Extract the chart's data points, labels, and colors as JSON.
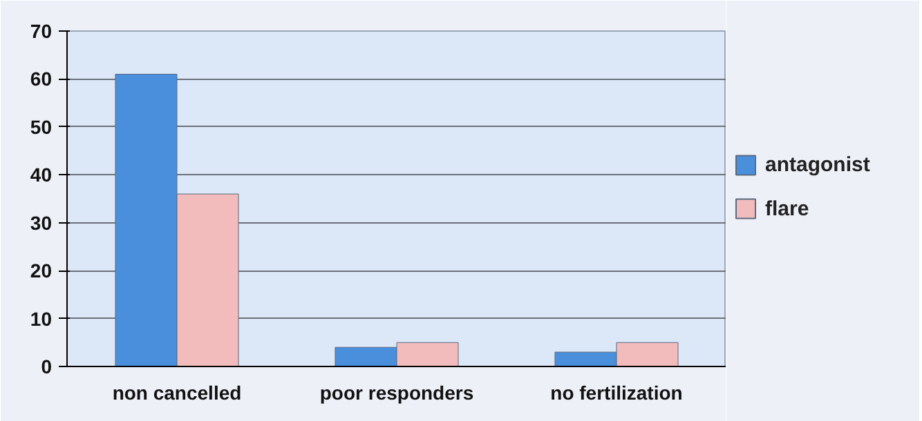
{
  "chart_data": {
    "type": "bar",
    "categories": [
      "non cancelled",
      "poor responders",
      "no fertilization"
    ],
    "series": [
      {
        "name": "antagonist",
        "color": "#4a8fdc",
        "values": [
          61,
          4,
          3
        ]
      },
      {
        "name": "flare",
        "color": "#f2bcbc",
        "values": [
          36,
          5,
          5
        ]
      }
    ],
    "ylim": [
      0,
      70
    ],
    "yticks": [
      0,
      10,
      20,
      30,
      40,
      50,
      60,
      70
    ],
    "grid": "y",
    "legend": "right"
  }
}
